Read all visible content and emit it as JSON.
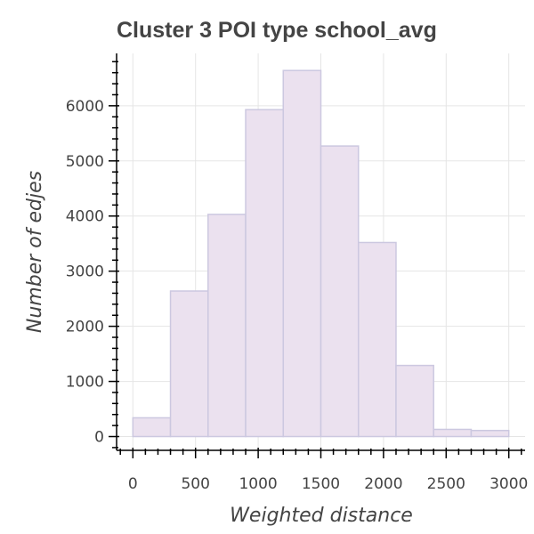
{
  "chart_data": {
    "type": "bar",
    "title": "Cluster 3 POI type school_avg",
    "xlabel": "Weighted distance",
    "ylabel": "Number of edjes",
    "bin_edges": [
      0,
      300,
      600,
      900,
      1200,
      1500,
      1800,
      2100,
      2400,
      2700,
      3000
    ],
    "values": [
      340,
      2640,
      4030,
      5930,
      6640,
      5270,
      3520,
      1290,
      130,
      110
    ],
    "xlim": [
      -130,
      3130
    ],
    "ylim": [
      -250,
      6950
    ],
    "x_ticks": [
      0,
      500,
      1000,
      1500,
      2000,
      2500,
      3000
    ],
    "y_ticks": [
      0,
      1000,
      2000,
      3000,
      4000,
      5000,
      6000
    ],
    "x_minor_step": 100,
    "y_minor_step": 200,
    "grid": true,
    "colors": {
      "bar_fill": "#ebe1ef",
      "bar_stroke": "#ccc8e0"
    }
  }
}
